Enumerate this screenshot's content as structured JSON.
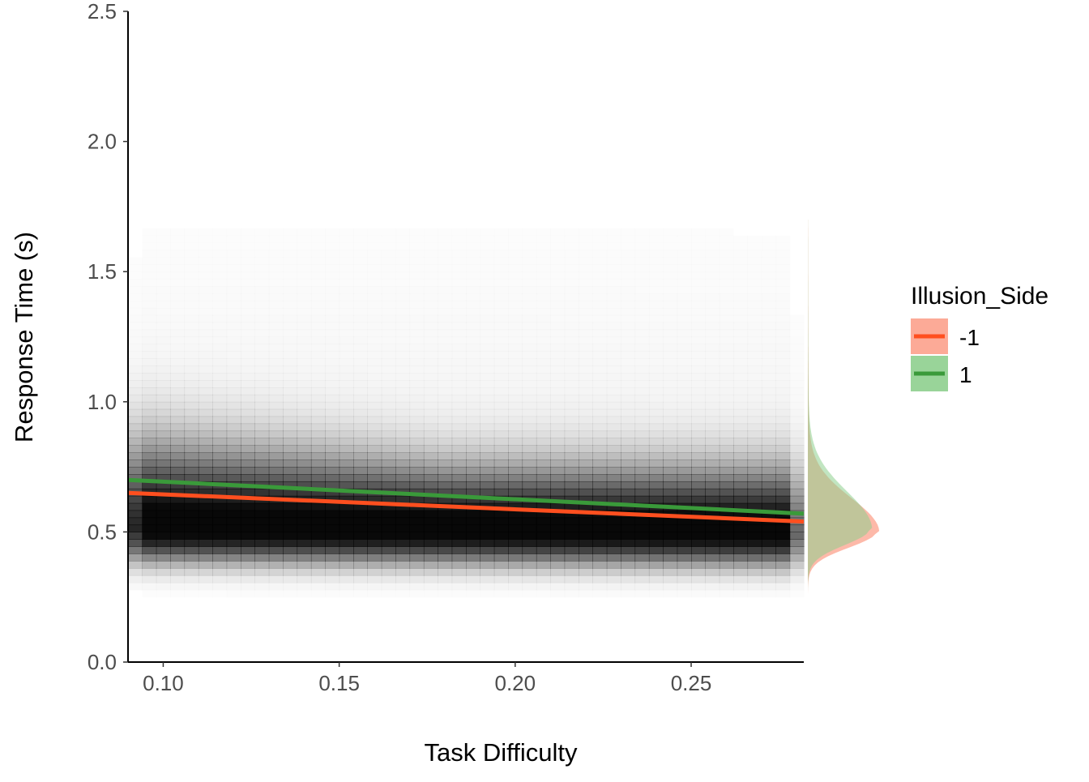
{
  "chart_data": {
    "type": "heatmap",
    "xlabel": "Task Difficulty",
    "ylabel": "Response Time (s)",
    "xlim": [
      0.09,
      0.282
    ],
    "ylim": [
      0,
      2.5
    ],
    "x_ticks": [
      "0.10",
      "0.15",
      "0.20",
      "0.25"
    ],
    "y_ticks": [
      "0.0",
      "0.5",
      "1.0",
      "1.5",
      "2.0",
      "2.5"
    ],
    "grid": false,
    "density": {
      "description_of_peak": "darkest band",
      "peak_rt": 0.5,
      "spread_below": 0.08,
      "spread_above": 0.17,
      "x_range": [
        0.09,
        0.282
      ],
      "tail_to": 1.2
    },
    "series": [
      {
        "name": "-1",
        "color": "#ff4f1f",
        "fill": "#fca18c",
        "line": {
          "x": [
            0.09,
            0.282
          ],
          "y": [
            0.65,
            0.54
          ]
        }
      },
      {
        "name": "1",
        "color": "#3a9a3a",
        "fill": "#8ecf8e",
        "line": {
          "x": [
            0.09,
            0.282
          ],
          "y": [
            0.7,
            0.57
          ]
        }
      }
    ],
    "marginal": {
      "type": "density",
      "axis": "y",
      "peak_rt": 0.5,
      "range": [
        0.25,
        1.7
      ]
    },
    "legend": {
      "title": "Illusion_Side",
      "placement": "right",
      "items": [
        "-1",
        "1"
      ]
    }
  }
}
